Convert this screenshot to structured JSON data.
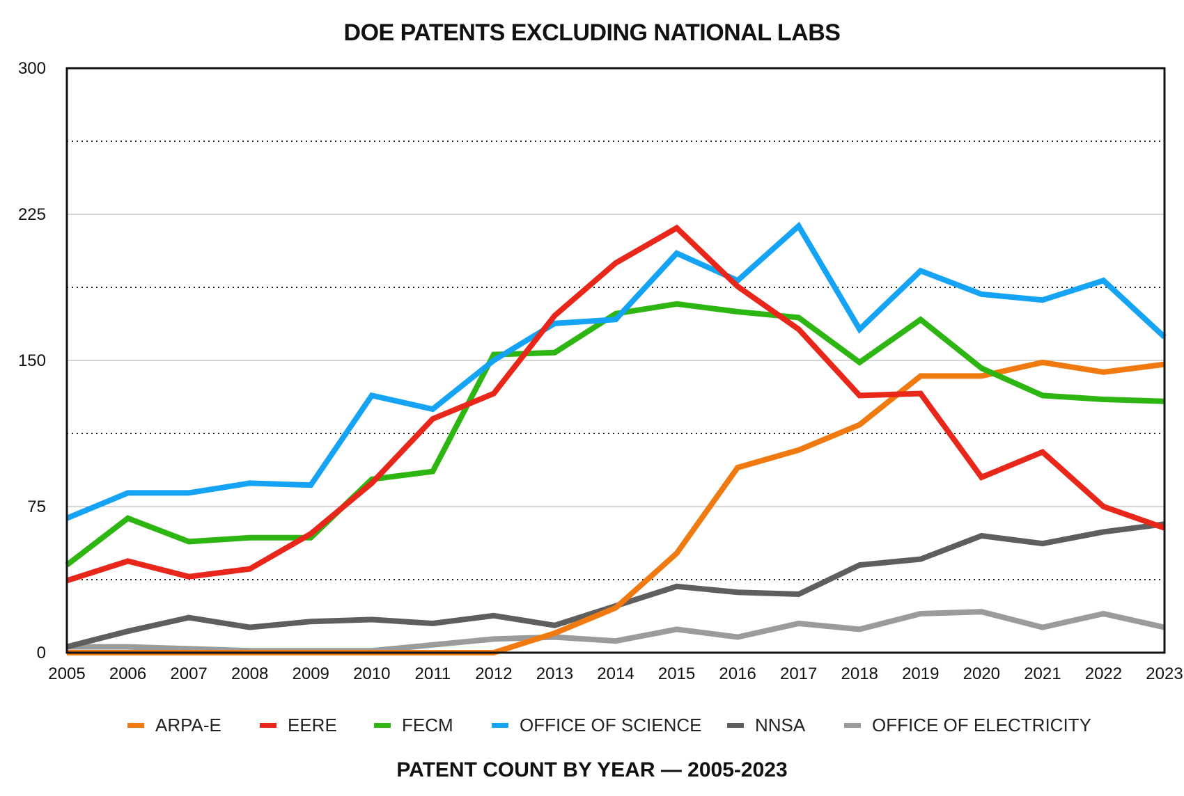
{
  "chart_data": {
    "type": "line",
    "title": "DOE PATENTS EXCLUDING NATIONAL LABS",
    "xlabel": "PATENT COUNT BY YEAR — 2005-2023",
    "ylabel": "",
    "ylim": [
      0,
      300
    ],
    "yticks": [
      0,
      75,
      150,
      225,
      300
    ],
    "grid": "horizontal",
    "legend_position": "bottom",
    "x": [
      "2005",
      "2006",
      "2007",
      "2008",
      "2009",
      "2010",
      "2011",
      "2012",
      "2013",
      "2014",
      "2015",
      "2016",
      "2017",
      "2018",
      "2019",
      "2020",
      "2021",
      "2022",
      "2023"
    ],
    "series": [
      {
        "name": "ARPA-E",
        "color": "#f07a10",
        "values": [
          0,
          0,
          0,
          0,
          0,
          0,
          0,
          0,
          10,
          23,
          51,
          95,
          104,
          117,
          142,
          142,
          149,
          144,
          148
        ]
      },
      {
        "name": "EERE",
        "color": "#e8261a",
        "values": [
          37,
          47,
          39,
          43,
          61,
          87,
          120,
          133,
          173,
          200,
          218,
          188,
          166,
          132,
          133,
          90,
          103,
          75,
          64
        ]
      },
      {
        "name": "FECM",
        "color": "#2db512",
        "values": [
          45,
          69,
          57,
          59,
          59,
          89,
          93,
          153,
          154,
          174,
          179,
          175,
          172,
          149,
          171,
          146,
          132,
          130,
          129
        ]
      },
      {
        "name": "OFFICE OF SCIENCE",
        "color": "#14a3f5",
        "values": [
          69,
          82,
          82,
          87,
          86,
          132,
          125,
          150,
          169,
          171,
          205,
          191,
          219,
          166,
          196,
          184,
          181,
          191,
          162
        ]
      },
      {
        "name": "NNSA",
        "color": "#5e5e5e",
        "values": [
          3,
          11,
          18,
          13,
          16,
          17,
          15,
          19,
          14,
          24,
          34,
          31,
          30,
          45,
          48,
          60,
          56,
          62,
          66
        ]
      },
      {
        "name": "OFFICE OF ELECTRICITY",
        "color": "#9b9b9b",
        "values": [
          3,
          3,
          2,
          1,
          1,
          1,
          4,
          7,
          8,
          6,
          12,
          8,
          15,
          12,
          20,
          21,
          13,
          20,
          13
        ]
      }
    ]
  }
}
